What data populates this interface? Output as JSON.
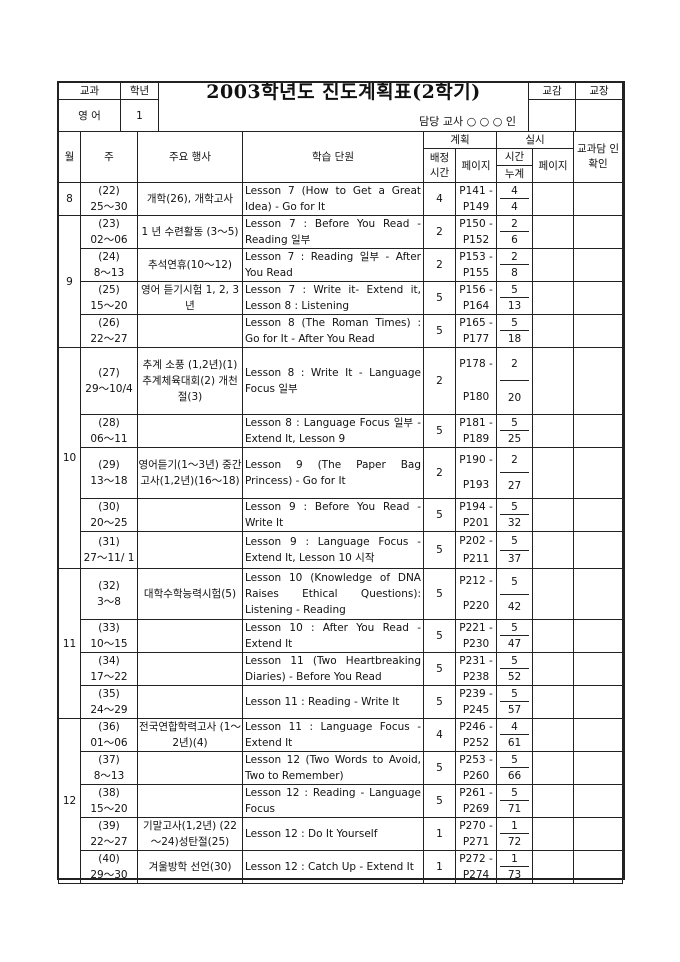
{
  "header": {
    "subject_label": "교과",
    "grade_label": "학년",
    "title": "2003학년도 진도계획표(2학기)",
    "vice_principal_label": "교감",
    "principal_label": "교장",
    "subject": "영 어",
    "grade": "1",
    "teacher_label": "담당 교사  ○  ○  ○  인"
  },
  "columns": {
    "month": "월",
    "week": "주",
    "events": "주요 행사",
    "unit": "학습 단원",
    "plan": "계획",
    "actual": "실시",
    "plan_hours": "배정 시간",
    "plan_pages": "페이지",
    "actual_hours": "시간",
    "actual_cum": "누계",
    "actual_pages": "페이지",
    "confirm": "교과담 인확인"
  },
  "months": [
    {
      "month": "8",
      "weeks": [
        {
          "week": "(22)",
          "dates": "25～30",
          "events": "개학(26), 개학고사",
          "unit": "Lesson 7 (How to Get a Great Idea) - Go for It",
          "hours": "4",
          "pages": "P141 -P149",
          "actual": "4",
          "cum": "4"
        }
      ]
    },
    {
      "month": "9",
      "weeks": [
        {
          "week": "(23)",
          "dates": "02～06",
          "events": "1 년 수련활동 (3～5)",
          "unit": "Lesson 7 : Before You Read - Reading 일부",
          "hours": "2",
          "pages": "P150 -P152",
          "actual": "2",
          "cum": "6"
        },
        {
          "week": "(24)",
          "dates": "8～13",
          "events": "추석연휴(10～12)",
          "unit": "Lesson 7 : Reading 일부 - After You Read",
          "hours": "2",
          "pages": "P153 -P155",
          "actual": "2",
          "cum": "8"
        },
        {
          "week": "(25)",
          "dates": "15～20",
          "events": "영어 듣기시험 1, 2, 3년",
          "unit": "Lesson 7 : Write it- Extend it, Lesson 8 : Listening",
          "hours": "5",
          "pages": "P156 -P164",
          "actual": "5",
          "cum": "13"
        },
        {
          "week": "(26)",
          "dates": "22～27",
          "events": "",
          "unit": "Lesson 8 (The Roman Times) : Go for It - After You Read",
          "hours": "5",
          "pages": "P165 -P177",
          "actual": "5",
          "cum": "18"
        }
      ]
    },
    {
      "month": "10",
      "weeks": [
        {
          "week": "(27)",
          "dates": "29～10/4",
          "events": "추계 소풍 (1,2년)(1) 추계체육대회(2) 개천절(3)",
          "unit": "Lesson 8 : Write It - Language Focus 일부",
          "hours": "2",
          "pages": "P178 -P180",
          "actual": "2",
          "cum": "20"
        },
        {
          "week": "(28)",
          "dates": "06～11",
          "events": "",
          "unit": "Lesson 8 : Language Focus 일부 - Extend It, Lesson 9",
          "hours": "5",
          "pages": "P181 -P189",
          "actual": "5",
          "cum": "25"
        },
        {
          "week": "(29)",
          "dates": "13～18",
          "events": "영어듣기(1～3년) 중간고사(1,2년)(16～18)",
          "unit": "Lesson 9 (The Paper Bag Princess) - Go for It",
          "hours": "2",
          "pages": "P190 -P193",
          "actual": "2",
          "cum": "27"
        },
        {
          "week": "(30)",
          "dates": "20～25",
          "events": "",
          "unit": "Lesson 9 : Before You Read - Write It",
          "hours": "5",
          "pages": "P194 -P201",
          "actual": "5",
          "cum": "32"
        },
        {
          "week": "(31)",
          "dates": "27～11/ 1",
          "events": "",
          "unit": "Lesson 9 : Language Focus - Extend It, Lesson 10 시작",
          "hours": "5",
          "pages": "P202 -P211",
          "actual": "5",
          "cum": "37"
        }
      ]
    },
    {
      "month": "11",
      "weeks": [
        {
          "week": "(32)",
          "dates": "3～8",
          "events": "대학수학능력시험(5)",
          "unit": "Lesson 10 (Knowledge of DNA Raises Ethical Questions): Listening - Reading",
          "hours": "5",
          "pages": "P212 -P220",
          "actual": "5",
          "cum": "42"
        },
        {
          "week": "(33)",
          "dates": "10～15",
          "events": "",
          "unit": "Lesson 10 : After You Read - Extend It",
          "hours": "5",
          "pages": "P221 -P230",
          "actual": "5",
          "cum": "47"
        },
        {
          "week": "(34)",
          "dates": "17～22",
          "events": "",
          "unit": "Lesson 11 (Two Heartbreaking Diaries) - Before You Read",
          "hours": "5",
          "pages": "P231 -P238",
          "actual": "5",
          "cum": "52"
        },
        {
          "week": "(35)",
          "dates": "24～29",
          "events": "",
          "unit": "Lesson 11 : Reading - Write It",
          "hours": "5",
          "pages": "P239 -P245",
          "actual": "5",
          "cum": "57"
        }
      ]
    },
    {
      "month": "12",
      "weeks": [
        {
          "week": "(36)",
          "dates": "01～06",
          "events": "전국연합학력고사 (1～2년)(4)",
          "unit": "Lesson 11 : Language Focus - Extend It",
          "hours": "4",
          "pages": "P246 -P252",
          "actual": "4",
          "cum": "61"
        },
        {
          "week": "(37)",
          "dates": "8～13",
          "events": "",
          "unit": "Lesson 12 (Two Words to Avoid, Two to Remember)",
          "hours": "5",
          "pages": "P253 -P260",
          "actual": "5",
          "cum": "66"
        },
        {
          "week": "(38)",
          "dates": "15～20",
          "events": "",
          "unit": "Lesson 12 : Reading - Language Focus",
          "hours": "5",
          "pages": "P261 -P269",
          "actual": "5",
          "cum": "71"
        },
        {
          "week": "(39)",
          "dates": "22～27",
          "events": "기말고사(1,2년) (22～24)성탄절(25)",
          "unit": "Lesson 12 : Do It Yourself",
          "hours": "1",
          "pages": "P270 -P271",
          "actual": "1",
          "cum": "72"
        },
        {
          "week": "(40)",
          "dates": "29～30",
          "events": "겨울방학 선언(30)",
          "unit": "Lesson 12 : Catch Up - Extend It",
          "hours": "1",
          "pages": "P272 -P274",
          "actual": "1",
          "cum": "73"
        }
      ]
    }
  ]
}
